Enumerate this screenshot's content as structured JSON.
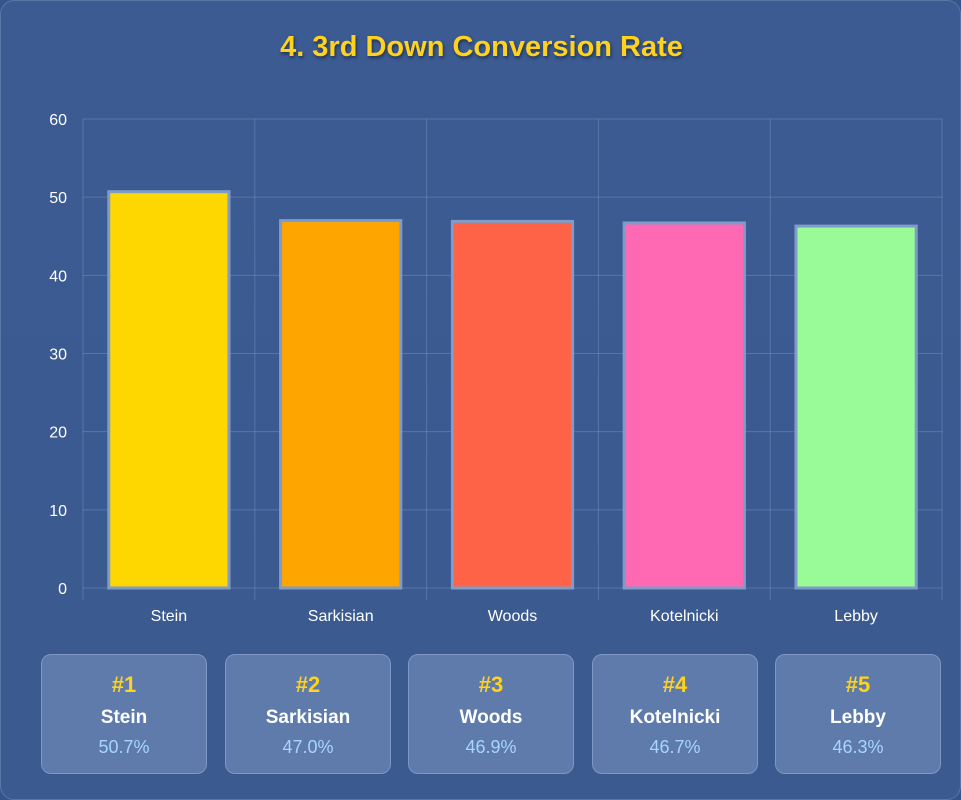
{
  "title": "4. 3rd Down Conversion Rate",
  "chart_data": {
    "type": "bar",
    "title": "4. 3rd Down Conversion Rate",
    "categories": [
      "Stein",
      "Sarkisian",
      "Woods",
      "Kotelnicki",
      "Lebby"
    ],
    "values": [
      50.7,
      47.0,
      46.9,
      46.7,
      46.3
    ],
    "colors": [
      "#ffd700",
      "#ffa500",
      "#ff6347",
      "#ff69b4",
      "#98fb98"
    ],
    "ylim": [
      0,
      60
    ],
    "yticks": [
      0,
      10,
      20,
      30,
      40,
      50,
      60
    ],
    "grid": true,
    "xlabel": "",
    "ylabel": ""
  },
  "rankings": [
    {
      "rank": "#1",
      "name": "Stein",
      "pct": "50.7%"
    },
    {
      "rank": "#2",
      "name": "Sarkisian",
      "pct": "47.0%"
    },
    {
      "rank": "#3",
      "name": "Woods",
      "pct": "46.9%"
    },
    {
      "rank": "#4",
      "name": "Kotelnicki",
      "pct": "46.7%"
    },
    {
      "rank": "#5",
      "name": "Lebby",
      "pct": "46.3%"
    }
  ]
}
